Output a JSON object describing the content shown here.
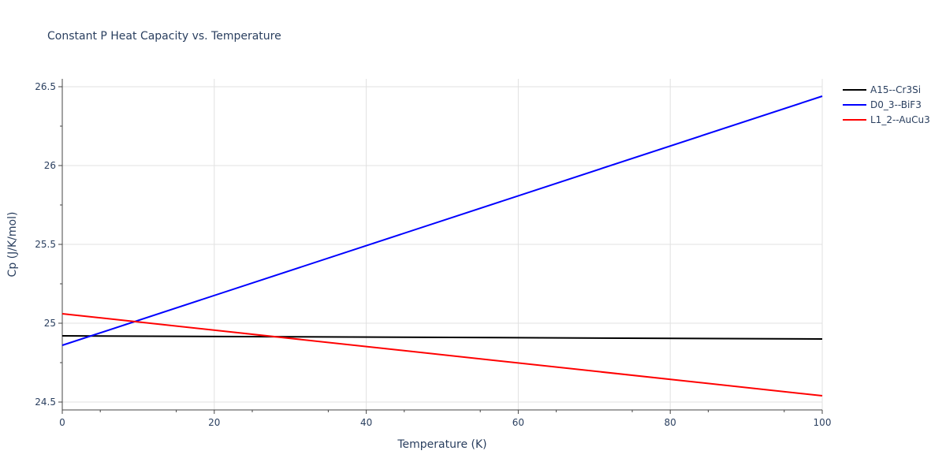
{
  "chart_data": {
    "type": "line",
    "title": "Constant P Heat Capacity vs. Temperature",
    "xlabel": "Temperature (K)",
    "ylabel": "Cp (J/K/mol)",
    "xlim": [
      0,
      100
    ],
    "ylim": [
      24.45,
      26.55
    ],
    "x_ticks": [
      0,
      20,
      40,
      60,
      80,
      100
    ],
    "x_tick_labels": [
      "0",
      "20",
      "40",
      "60",
      "80",
      "100"
    ],
    "y_ticks": [
      24.5,
      25,
      25.5,
      26,
      26.5
    ],
    "y_tick_labels": [
      "24.5",
      "25",
      "25.5",
      "26",
      "26.5"
    ],
    "grid": true,
    "legend_position": "top-right",
    "series": [
      {
        "name": "A15--Cr3Si",
        "color": "#000000",
        "x": [
          0,
          100
        ],
        "y": [
          24.92,
          24.9
        ]
      },
      {
        "name": "D0_3--BiF3",
        "color": "#0000ff",
        "x": [
          0,
          100
        ],
        "y": [
          24.86,
          26.44
        ]
      },
      {
        "name": "L1_2--AuCu3",
        "color": "#ff0000",
        "x": [
          0,
          100
        ],
        "y": [
          25.06,
          24.54
        ]
      }
    ]
  }
}
